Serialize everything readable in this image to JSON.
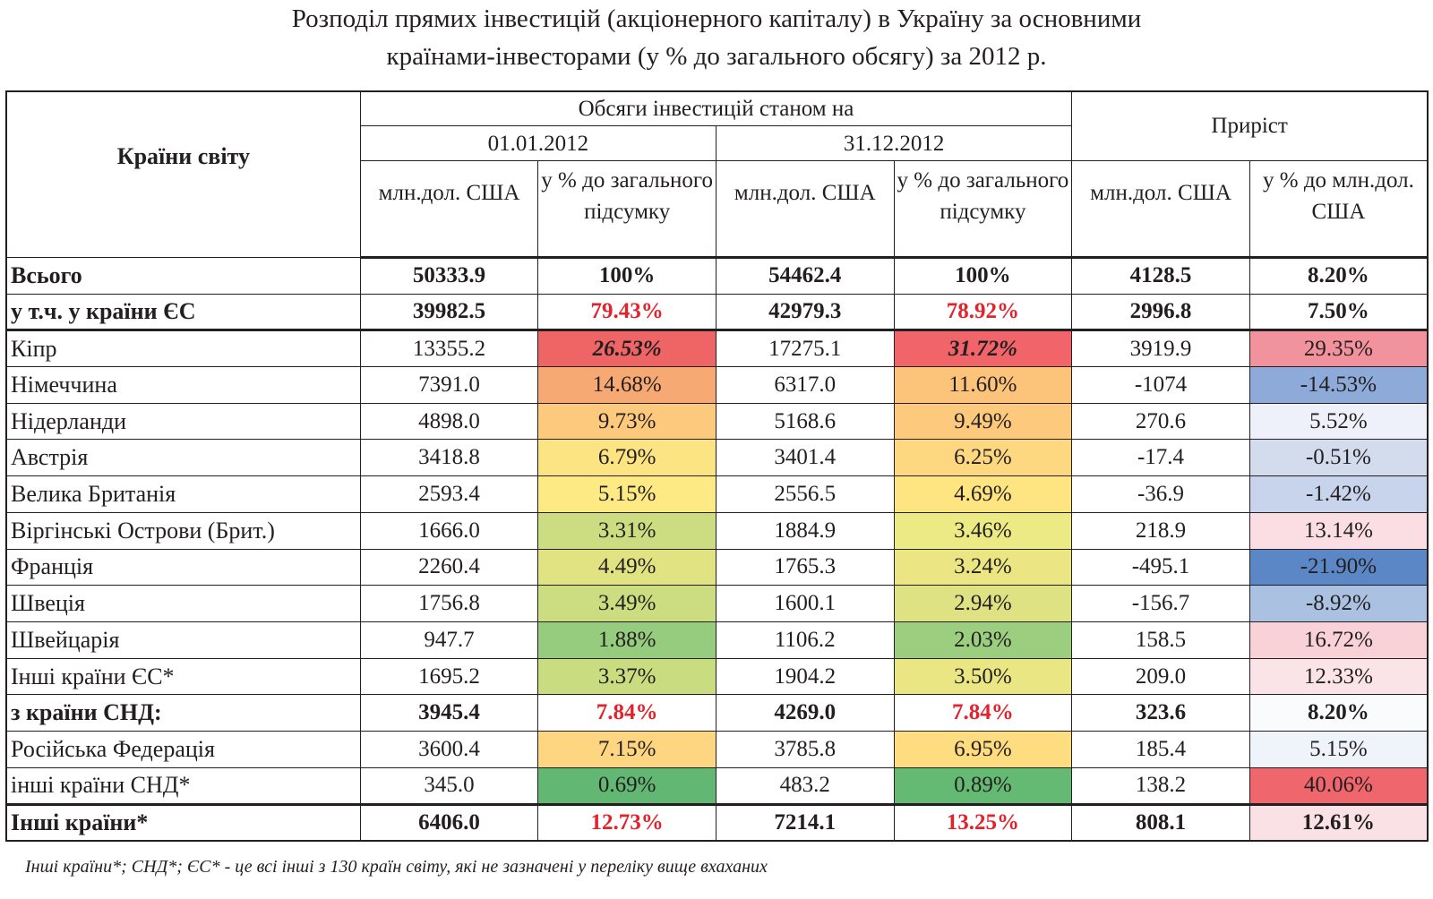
{
  "title": {
    "line1": "Розподіл прямих інвестицій (акціонерного капіталу) в Україну за основними",
    "line2": "країнами-інвесторами (у % до загального обсягу) за 2012 р."
  },
  "header": {
    "countries": "Країни світу",
    "volumes": "Обсяги інвестицій станом на",
    "date1": "01.01.2012",
    "date2": "31.12.2012",
    "growth": "Приріст",
    "col_mln": "млн.дол. США",
    "col_pct_total": "у % до загального підсумку",
    "col_pct_mln": "у % до млн.дол. США"
  },
  "rows": [
    {
      "name": "Всього",
      "v1": "50333.9",
      "p1": "100%",
      "v2": "54462.4",
      "p2": "100%",
      "g": "4128.5",
      "gp": "8.20%"
    },
    {
      "name": "у т.ч. у країни ЄС",
      "v1": "39982.5",
      "p1": "79.43%",
      "v2": "42979.3",
      "p2": "78.92%",
      "g": "2996.8",
      "gp": "7.50%"
    },
    {
      "name": "Кіпр",
      "v1": "13355.2",
      "p1": "26.53%",
      "v2": "17275.1",
      "p2": "31.72%",
      "g": "3919.9",
      "gp": "29.35%"
    },
    {
      "name": "Німеччина",
      "v1": "7391.0",
      "p1": "14.68%",
      "v2": "6317.0",
      "p2": "11.60%",
      "g": "-1074",
      "gp": "-14.53%"
    },
    {
      "name": "Нідерланди",
      "v1": "4898.0",
      "p1": "9.73%",
      "v2": "5168.6",
      "p2": "9.49%",
      "g": "270.6",
      "gp": "5.52%"
    },
    {
      "name": "Австрія",
      "v1": "3418.8",
      "p1": "6.79%",
      "v2": "3401.4",
      "p2": "6.25%",
      "g": "-17.4",
      "gp": "-0.51%"
    },
    {
      "name": "Велика Британія",
      "v1": "2593.4",
      "p1": "5.15%",
      "v2": "2556.5",
      "p2": "4.69%",
      "g": "-36.9",
      "gp": "-1.42%"
    },
    {
      "name": "Віргінські Острови (Брит.)",
      "v1": "1666.0",
      "p1": "3.31%",
      "v2": "1884.9",
      "p2": "3.46%",
      "g": "218.9",
      "gp": "13.14%"
    },
    {
      "name": "Франція",
      "v1": "2260.4",
      "p1": "4.49%",
      "v2": "1765.3",
      "p2": "3.24%",
      "g": "-495.1",
      "gp": "-21.90%"
    },
    {
      "name": "Швеція",
      "v1": "1756.8",
      "p1": "3.49%",
      "v2": "1600.1",
      "p2": "2.94%",
      "g": "-156.7",
      "gp": "-8.92%"
    },
    {
      "name": "Швейцарія",
      "v1": "947.7",
      "p1": "1.88%",
      "v2": "1106.2",
      "p2": "2.03%",
      "g": "158.5",
      "gp": "16.72%"
    },
    {
      "name": "Інші країни ЄС*",
      "v1": "1695.2",
      "p1": "3.37%",
      "v2": "1904.2",
      "p2": "3.50%",
      "g": "209.0",
      "gp": "12.33%"
    },
    {
      "name": "з країни СНД:",
      "v1": "3945.4",
      "p1": "7.84%",
      "v2": "4269.0",
      "p2": "7.84%",
      "g": "323.6",
      "gp": "8.20%"
    },
    {
      "name": "Російська Федерація",
      "v1": "3600.4",
      "p1": "7.15%",
      "v2": "3785.8",
      "p2": "6.95%",
      "g": "185.4",
      "gp": "5.15%"
    },
    {
      "name": "інші країни СНД*",
      "v1": "345.0",
      "p1": "0.69%",
      "v2": "483.2",
      "p2": "0.89%",
      "g": "138.2",
      "gp": "40.06%"
    },
    {
      "name": "Інші країни*",
      "v1": "6406.0",
      "p1": "12.73%",
      "v2": "7214.1",
      "p2": "13.25%",
      "g": "808.1",
      "gp": "12.61%"
    }
  ],
  "colors": {
    "text": "#231f20",
    "highlight_red_text": "#e3232c",
    "p1_fill": [
      null,
      null,
      "#ef6566",
      "#f6a973",
      "#fdc97c",
      "#fde482",
      "#fdea84",
      "#cbdd80",
      "#e1e383",
      "#cbdd80",
      "#95cc7e",
      "#c9dc80",
      null,
      "#fed580",
      "#62b873",
      null
    ],
    "p2_fill": [
      null,
      null,
      "#f0646a",
      "#fcc37b",
      "#fdc97c",
      "#fed880",
      "#fee582",
      "#ecea84",
      "#ebe683",
      "#dfe283",
      "#9bcf7f",
      "#eae683",
      null,
      "#fedc80",
      "#65ba73",
      null
    ],
    "gp_fill": [
      null,
      null,
      "#f2929c",
      "#8eaad8",
      "#eef1f9",
      "#d3dced",
      "#c8d4eb",
      "#fadee3",
      "#5c87c7",
      "#aac1e2",
      "#f8d2d7",
      "#fae4e7",
      "#fafbfd",
      "#eff3fa",
      "#f0666d",
      "#fae1e5"
    ]
  },
  "footnote": "Інші країни*; СНД*; ЄС* - це всі інші з 130 країн світу, які не зазначені у переліку вище вхаханих"
}
